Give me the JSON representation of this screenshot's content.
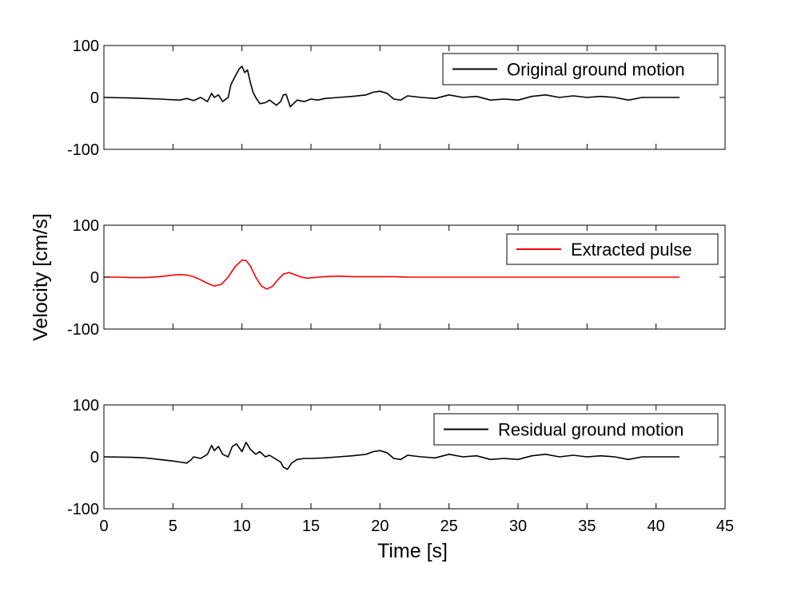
{
  "figure": {
    "ylabel": "Velocity [cm/s]",
    "xlabel": "Time [s]"
  },
  "chart_data": [
    {
      "type": "line",
      "title": "",
      "xlabel": "",
      "ylabel": "",
      "xlim": [
        0,
        45
      ],
      "ylim": [
        -100,
        100
      ],
      "xticks": [
        0,
        5,
        10,
        15,
        20,
        25,
        30,
        35,
        40,
        45
      ],
      "yticks": [
        100,
        0,
        -100
      ],
      "x_tick_labels_shown": false,
      "grid": false,
      "legend_position": "top-right",
      "series": [
        {
          "name": "Original ground motion",
          "color": "#000000",
          "x": [
            0,
            2,
            4,
            5.5,
            6,
            6.5,
            7,
            7.5,
            7.8,
            8.0,
            8.3,
            8.6,
            9.0,
            9.2,
            9.5,
            9.8,
            10.0,
            10.2,
            10.4,
            10.6,
            10.8,
            11.0,
            11.3,
            11.7,
            12.0,
            12.5,
            12.8,
            13.0,
            13.2,
            13.5,
            14.0,
            14.5,
            15.0,
            15.5,
            16,
            17,
            18,
            19,
            19.5,
            20,
            20.5,
            21,
            21.5,
            22,
            23,
            24,
            25,
            26,
            27,
            28,
            29,
            30,
            31,
            32,
            33,
            34,
            35,
            36,
            37,
            38,
            39,
            40,
            41,
            41.7
          ],
          "y": [
            0,
            -1,
            -3,
            -5,
            -2,
            -6,
            0,
            -8,
            8,
            0,
            5,
            -8,
            0,
            25,
            40,
            55,
            60,
            48,
            53,
            30,
            10,
            0,
            -12,
            -10,
            -5,
            -15,
            -8,
            5,
            6,
            -18,
            -5,
            -8,
            -3,
            -5,
            -2,
            0,
            2,
            5,
            10,
            12,
            8,
            -3,
            -5,
            3,
            0,
            -2,
            5,
            0,
            2,
            -5,
            -3,
            -5,
            2,
            5,
            0,
            3,
            0,
            2,
            0,
            -5,
            0,
            0,
            0,
            0
          ]
        }
      ]
    },
    {
      "type": "line",
      "title": "",
      "xlabel": "",
      "ylabel": "",
      "xlim": [
        0,
        45
      ],
      "ylim": [
        -100,
        100
      ],
      "xticks": [
        0,
        5,
        10,
        15,
        20,
        25,
        30,
        35,
        40,
        45
      ],
      "yticks": [
        100,
        0,
        -100
      ],
      "x_tick_labels_shown": false,
      "grid": false,
      "legend_position": "top-right",
      "series": [
        {
          "name": "Extracted pulse",
          "color": "#ff0000",
          "x": [
            0,
            1,
            2,
            3,
            4,
            5,
            5.5,
            6,
            6.5,
            7,
            7.5,
            8,
            8.5,
            9,
            9.5,
            10,
            10.3,
            10.6,
            11,
            11.4,
            11.8,
            12.2,
            12.6,
            13,
            13.4,
            13.8,
            14.3,
            14.8,
            15.5,
            16,
            17,
            18,
            19,
            20,
            21,
            22,
            25,
            30,
            35,
            40,
            41.7
          ],
          "y": [
            0,
            0,
            -1,
            -1,
            1,
            4,
            5,
            4,
            1,
            -5,
            -12,
            -17,
            -14,
            0,
            20,
            33,
            32,
            22,
            0,
            -17,
            -23,
            -18,
            -5,
            6,
            9,
            5,
            0,
            -2,
            0,
            1,
            2,
            1,
            1,
            1,
            1,
            0,
            0,
            0,
            0,
            0,
            0
          ]
        }
      ]
    },
    {
      "type": "line",
      "title": "",
      "xlabel": "",
      "ylabel": "",
      "xlim": [
        0,
        45
      ],
      "ylim": [
        -100,
        100
      ],
      "xticks": [
        0,
        5,
        10,
        15,
        20,
        25,
        30,
        35,
        40,
        45
      ],
      "yticks": [
        100,
        0,
        -100
      ],
      "x_tick_labels_shown": true,
      "grid": false,
      "legend_position": "top-right",
      "series": [
        {
          "name": "Residual ground motion",
          "color": "#000000",
          "x": [
            0,
            2,
            3,
            4,
            5,
            5.5,
            6,
            6.3,
            6.5,
            7,
            7.5,
            7.8,
            8.0,
            8.3,
            8.6,
            9,
            9.3,
            9.6,
            10.0,
            10.3,
            10.6,
            11,
            11.3,
            11.7,
            12,
            12.5,
            12.8,
            13.0,
            13.3,
            13.6,
            14,
            14.5,
            15,
            16,
            17,
            18,
            19,
            19.5,
            20,
            20.5,
            21,
            21.5,
            22,
            23,
            24,
            25,
            26,
            27,
            28,
            29,
            30,
            31,
            32,
            33,
            34,
            35,
            36,
            37,
            38,
            39,
            40,
            41,
            41.7
          ],
          "y": [
            0,
            -1,
            -2,
            -5,
            -8,
            -10,
            -12,
            -6,
            0,
            -3,
            5,
            22,
            12,
            20,
            5,
            0,
            20,
            25,
            10,
            28,
            15,
            5,
            10,
            0,
            3,
            -5,
            -10,
            -20,
            -24,
            -12,
            -5,
            -3,
            -3,
            -2,
            0,
            2,
            5,
            10,
            12,
            8,
            -3,
            -5,
            3,
            0,
            -2,
            5,
            0,
            2,
            -5,
            -3,
            -5,
            2,
            5,
            0,
            3,
            0,
            2,
            0,
            -5,
            0,
            0,
            0,
            0
          ]
        }
      ]
    }
  ]
}
